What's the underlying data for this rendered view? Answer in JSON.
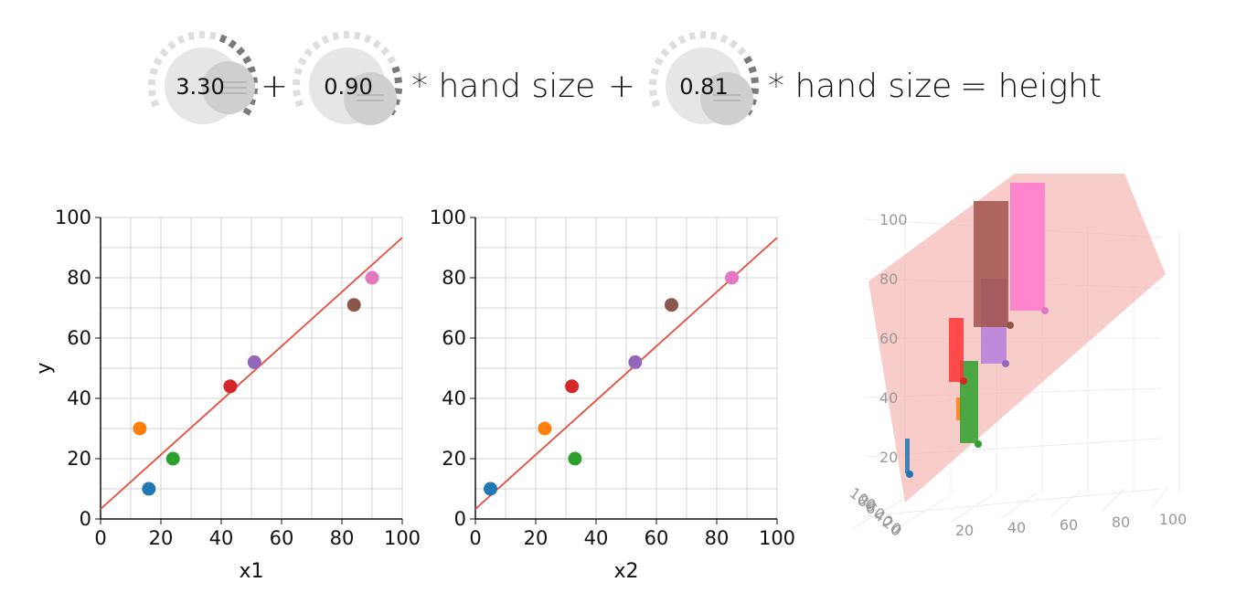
{
  "equation": {
    "intercept": "3.30",
    "coef1": "0.90",
    "coef2": "0.81",
    "plus1": "+",
    "plus2": "+",
    "term1": "* hand size",
    "term2": "* hand size",
    "result": "= height"
  },
  "chart_data": [
    {
      "type": "scatter",
      "title": "",
      "xlabel": "x1",
      "ylabel": "y",
      "xlim": [
        0,
        100
      ],
      "ylim": [
        0,
        100
      ],
      "xticks": [
        "0",
        "20",
        "40",
        "60",
        "80",
        "100"
      ],
      "yticks": [
        "0",
        "20",
        "40",
        "60",
        "80",
        "100"
      ],
      "grid": true,
      "points": [
        {
          "x": 16,
          "y": 10,
          "color": "#1f77b4"
        },
        {
          "x": 13,
          "y": 30,
          "color": "#ff7f0e"
        },
        {
          "x": 24,
          "y": 20,
          "color": "#2ca02c"
        },
        {
          "x": 43,
          "y": 44,
          "color": "#d62728"
        },
        {
          "x": 51,
          "y": 52,
          "color": "#9467bd"
        },
        {
          "x": 84,
          "y": 71,
          "color": "#8c564b"
        },
        {
          "x": 90,
          "y": 80,
          "color": "#e377c2"
        }
      ],
      "fit_line": {
        "intercept": 3.3,
        "slope": 0.9,
        "color": "#e74c3c"
      }
    },
    {
      "type": "scatter",
      "title": "",
      "xlabel": "x2",
      "ylabel": "",
      "xlim": [
        0,
        100
      ],
      "ylim": [
        0,
        100
      ],
      "xticks": [
        "0",
        "20",
        "40",
        "60",
        "80",
        "100"
      ],
      "yticks": [
        "0",
        "20",
        "40",
        "60",
        "80",
        "100"
      ],
      "grid": true,
      "points": [
        {
          "x": 5,
          "y": 10,
          "color": "#1f77b4"
        },
        {
          "x": 23,
          "y": 30,
          "color": "#ff7f0e"
        },
        {
          "x": 33,
          "y": 20,
          "color": "#2ca02c"
        },
        {
          "x": 32,
          "y": 44,
          "color": "#d62728"
        },
        {
          "x": 53,
          "y": 52,
          "color": "#9467bd"
        },
        {
          "x": 65,
          "y": 71,
          "color": "#8c564b"
        },
        {
          "x": 85,
          "y": 80,
          "color": "#e377c2"
        }
      ],
      "fit_line": {
        "intercept": 3.3,
        "slope": 0.9,
        "color": "#e74c3c"
      }
    },
    {
      "type": "scatter3d",
      "title": "",
      "zticks": [
        "100",
        "80",
        "60",
        "40",
        "20"
      ],
      "xticks": [
        "20",
        "40",
        "60",
        "80",
        "100"
      ],
      "yticks": [
        "100",
        "80",
        "60",
        "40",
        "20",
        "0"
      ],
      "plane_color": "#f5b7b1"
    }
  ]
}
